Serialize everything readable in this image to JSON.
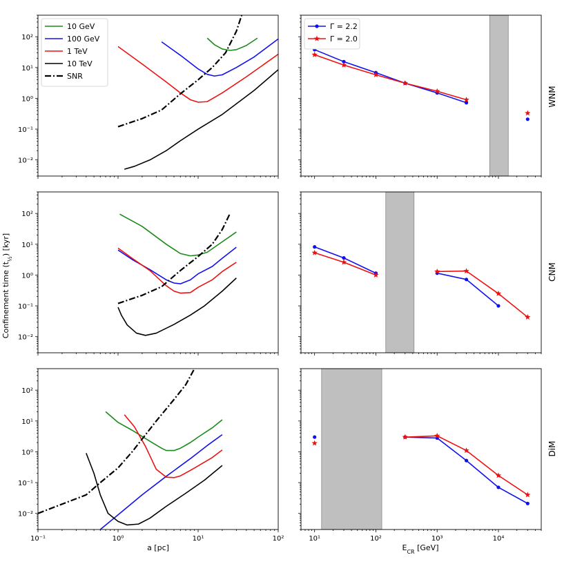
{
  "figure": {
    "ylabel": "Confinement time (t",
    "ylabel_sub": "½",
    "ylabel_tail": ") [kyr]",
    "left_xlabel": "a [pc]",
    "right_xlabel": "E",
    "right_xlabel_sub": "CR",
    "right_xlabel_tail": " [GeV]",
    "row_labels": [
      "WNM",
      "CNM",
      "DiM"
    ]
  },
  "colors": {
    "green": "#1a8a1a",
    "blue": "#1010ee",
    "red": "#ee1010",
    "black": "#000000",
    "shade": "#bfbfbf"
  },
  "chart_data": [
    {
      "panel": "WNM-left",
      "type": "line",
      "xscale": "log",
      "yscale": "log",
      "xlim": [
        0.1,
        100
      ],
      "ylim": [
        0.003,
        500
      ],
      "legend": {
        "placement": "top-left",
        "entries": [
          {
            "label": "10 GeV",
            "color": "green",
            "style": "solid"
          },
          {
            "label": "100 GeV",
            "color": "blue",
            "style": "solid"
          },
          {
            "label": "1 TeV",
            "color": "red",
            "style": "solid"
          },
          {
            "label": "10 TeV",
            "color": "black",
            "style": "solid"
          },
          {
            "label": "SNR",
            "color": "black",
            "style": "dashdot"
          }
        ]
      },
      "series": [
        {
          "name": "10 GeV",
          "color": "green",
          "x": [
            13,
            16,
            20,
            25,
            30,
            40,
            55
          ],
          "y": [
            90,
            55,
            40,
            36,
            38,
            52,
            90
          ]
        },
        {
          "name": "100 GeV",
          "color": "blue",
          "x": [
            3.5,
            6,
            10,
            13,
            16,
            20,
            30,
            50,
            100
          ],
          "y": [
            68,
            25,
            9,
            6,
            5.3,
            5.8,
            10,
            22,
            85
          ]
        },
        {
          "name": "1 TeV",
          "color": "red",
          "x": [
            1,
            2,
            4,
            6,
            8,
            10,
            13,
            20,
            40,
            100
          ],
          "y": [
            48,
            13,
            3.4,
            1.5,
            0.9,
            0.75,
            0.78,
            1.5,
            5,
            27
          ]
        },
        {
          "name": "10 TeV",
          "color": "black",
          "x": [
            1.2,
            1.6,
            2.5,
            4,
            6,
            10,
            20,
            50,
            100
          ],
          "y": [
            0.005,
            0.0062,
            0.01,
            0.02,
            0.042,
            0.1,
            0.3,
            1.8,
            8.5
          ]
        },
        {
          "name": "SNR",
          "color": "black",
          "style": "dashdot",
          "x": [
            1,
            2,
            3.5,
            6,
            10,
            15,
            22,
            30,
            35
          ],
          "y": [
            0.12,
            0.22,
            0.42,
            1.4,
            4,
            10,
            30,
            150,
            500
          ]
        }
      ]
    },
    {
      "panel": "WNM-right",
      "type": "line",
      "xscale": "log",
      "yscale": "log",
      "xlim": [
        6,
        50000
      ],
      "ylim": [
        0.003,
        500
      ],
      "legend": {
        "placement": "top-left",
        "entries": [
          {
            "label": "Γ = 2.2",
            "color": "blue",
            "marker": "dot"
          },
          {
            "label": "Γ = 2.0",
            "color": "red",
            "marker": "star"
          }
        ]
      },
      "shaded": [
        7200,
        14500
      ],
      "series": [
        {
          "name": "Γ = 2.2",
          "color": "blue",
          "marker": "dot",
          "segments": [
            {
              "x": [
                10,
                30,
                100,
                300,
                1000,
                3000
              ],
              "y": [
                38,
                15.5,
                6.8,
                3.1,
                1.5,
                0.72
              ]
            },
            {
              "x": [
                30000
              ],
              "y": [
                0.21
              ]
            }
          ]
        },
        {
          "name": "Γ = 2.0",
          "color": "red",
          "marker": "star",
          "segments": [
            {
              "x": [
                10,
                30,
                100,
                300,
                1000,
                3000
              ],
              "y": [
                26,
                12,
                5.8,
                3.1,
                1.7,
                0.9
              ]
            },
            {
              "x": [
                30000
              ],
              "y": [
                0.33
              ]
            }
          ]
        }
      ]
    },
    {
      "panel": "CNM-left",
      "type": "line",
      "xscale": "log",
      "yscale": "log",
      "xlim": [
        0.1,
        100
      ],
      "ylim": [
        0.003,
        500
      ],
      "series": [
        {
          "name": "10 GeV",
          "color": "green",
          "x": [
            1.05,
            2,
            4,
            6,
            8,
            10,
            13,
            20,
            30
          ],
          "y": [
            95,
            38,
            10,
            5,
            4.2,
            4.5,
            5.5,
            12,
            25
          ]
        },
        {
          "name": "100 GeV",
          "color": "blue",
          "x": [
            1,
            1.5,
            2.5,
            4,
            5,
            6,
            8,
            10,
            15,
            20,
            30
          ],
          "y": [
            6.5,
            3.2,
            1.5,
            0.7,
            0.55,
            0.52,
            0.7,
            1.1,
            1.9,
            3.5,
            8
          ]
        },
        {
          "name": "1 TeV",
          "color": "red",
          "x": [
            1,
            1.5,
            2.5,
            4,
            5,
            6,
            8,
            10,
            15,
            20,
            30
          ],
          "y": [
            7.5,
            3.5,
            1.4,
            0.45,
            0.3,
            0.26,
            0.27,
            0.4,
            0.7,
            1.3,
            2.6
          ]
        },
        {
          "name": "10 TeV",
          "color": "black",
          "x": [
            1,
            1.1,
            1.3,
            1.7,
            2.2,
            3,
            5,
            8,
            12,
            20,
            30
          ],
          "y": [
            0.09,
            0.05,
            0.024,
            0.013,
            0.011,
            0.013,
            0.025,
            0.05,
            0.1,
            0.3,
            0.8
          ]
        },
        {
          "name": "SNR",
          "color": "black",
          "style": "dashdot",
          "x": [
            1,
            2,
            3.5,
            6,
            10,
            15,
            20,
            25
          ],
          "y": [
            0.12,
            0.22,
            0.42,
            1.4,
            4,
            10,
            30,
            100
          ]
        }
      ]
    },
    {
      "panel": "CNM-right",
      "type": "line",
      "xscale": "log",
      "yscale": "log",
      "xlim": [
        6,
        50000
      ],
      "ylim": [
        0.003,
        500
      ],
      "shaded": [
        145,
        420
      ],
      "series": [
        {
          "name": "Γ = 2.2",
          "color": "blue",
          "marker": "dot",
          "segments": [
            {
              "x": [
                10,
                30,
                100
              ],
              "y": [
                8.2,
                3.6,
                1.15
              ]
            },
            {
              "x": [
                1000,
                3000,
                10000
              ],
              "y": [
                1.15,
                0.72,
                0.1
              ]
            }
          ]
        },
        {
          "name": "Γ = 2.0",
          "color": "red",
          "marker": "star",
          "segments": [
            {
              "x": [
                10,
                30,
                100
              ],
              "y": [
                5.3,
                2.6,
                1.0
              ]
            },
            {
              "x": [
                1000,
                3000,
                10000,
                30000
              ],
              "y": [
                1.3,
                1.35,
                0.25,
                0.043
              ]
            }
          ]
        }
      ]
    },
    {
      "panel": "DiM-left",
      "type": "line",
      "xscale": "log",
      "yscale": "log",
      "xlim": [
        0.1,
        100
      ],
      "ylim": [
        0.003,
        500
      ],
      "series": [
        {
          "name": "10 GeV",
          "color": "green",
          "x": [
            0.7,
            1,
            1.5,
            2.5,
            3.5,
            4,
            5,
            6,
            8,
            10,
            15,
            20
          ],
          "y": [
            20,
            9,
            5,
            2.2,
            1.3,
            1.1,
            1.1,
            1.3,
            2,
            3,
            6,
            11
          ]
        },
        {
          "name": "100 GeV",
          "color": "blue",
          "x": [
            0.6,
            1,
            2,
            4,
            8,
            13,
            20
          ],
          "y": [
            0.003,
            0.009,
            0.04,
            0.16,
            0.6,
            1.6,
            3.6
          ]
        },
        {
          "name": "1 TeV",
          "color": "red",
          "x": [
            1.2,
            1.6,
            2.2,
            3,
            4,
            5,
            6,
            8,
            10,
            15,
            20
          ],
          "y": [
            16,
            6.5,
            1.5,
            0.27,
            0.15,
            0.145,
            0.165,
            0.25,
            0.35,
            0.65,
            1.15
          ]
        },
        {
          "name": "10 TeV",
          "color": "black",
          "x": [
            0.4,
            0.5,
            0.6,
            0.75,
            1,
            1.3,
            1.8,
            2.5,
            4,
            7,
            12,
            20
          ],
          "y": [
            0.9,
            0.2,
            0.04,
            0.01,
            0.0055,
            0.0042,
            0.0045,
            0.007,
            0.017,
            0.045,
            0.12,
            0.36
          ]
        },
        {
          "name": "SNR",
          "color": "black",
          "style": "dashdot",
          "x": [
            0.1,
            0.4,
            0.6,
            1,
            1.5,
            3,
            5,
            7,
            9
          ],
          "y": [
            0.01,
            0.04,
            0.1,
            0.3,
            1,
            10,
            50,
            150,
            500
          ]
        }
      ]
    },
    {
      "panel": "DiM-right",
      "type": "line",
      "xscale": "log",
      "yscale": "log",
      "xlim": [
        6,
        50000
      ],
      "ylim": [
        0.003,
        500
      ],
      "shaded": [
        13,
        125
      ],
      "series": [
        {
          "name": "Γ = 2.2",
          "color": "blue",
          "marker": "dot",
          "segments": [
            {
              "x": [
                10
              ],
              "y": [
                3.0
              ]
            },
            {
              "x": [
                300,
                1000,
                3000,
                10000,
                30000
              ],
              "y": [
                3.0,
                2.8,
                0.52,
                0.07,
                0.021
              ]
            }
          ]
        },
        {
          "name": "Γ = 2.0",
          "color": "red",
          "marker": "star",
          "segments": [
            {
              "x": [
                10
              ],
              "y": [
                1.9
              ]
            },
            {
              "x": [
                300,
                1000,
                3000,
                10000,
                30000
              ],
              "y": [
                3.0,
                3.3,
                1.1,
                0.17,
                0.04
              ]
            }
          ]
        }
      ]
    }
  ]
}
